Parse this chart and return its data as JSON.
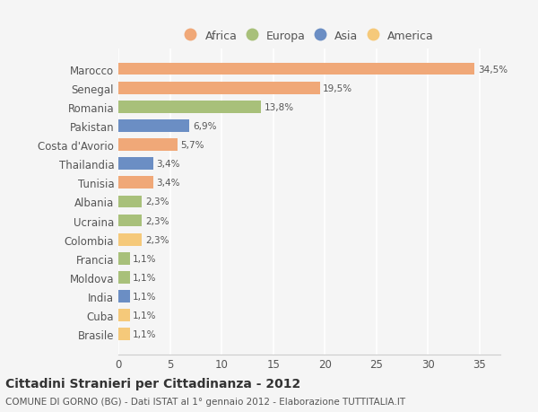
{
  "countries": [
    "Brasile",
    "Cuba",
    "India",
    "Moldova",
    "Francia",
    "Colombia",
    "Ucraina",
    "Albania",
    "Tunisia",
    "Thailandia",
    "Costa d'Avorio",
    "Pakistan",
    "Romania",
    "Senegal",
    "Marocco"
  ],
  "values": [
    1.1,
    1.1,
    1.1,
    1.1,
    1.1,
    2.3,
    2.3,
    2.3,
    3.4,
    3.4,
    5.7,
    6.9,
    13.8,
    19.5,
    34.5
  ],
  "labels": [
    "1,1%",
    "1,1%",
    "1,1%",
    "1,1%",
    "1,1%",
    "2,3%",
    "2,3%",
    "2,3%",
    "3,4%",
    "3,4%",
    "5,7%",
    "6,9%",
    "13,8%",
    "19,5%",
    "34,5%"
  ],
  "colors": [
    "#F5C97A",
    "#F5C97A",
    "#6B8EC4",
    "#A8C07A",
    "#A8C07A",
    "#F5C97A",
    "#A8C07A",
    "#A8C07A",
    "#F0A878",
    "#6B8EC4",
    "#F0A878",
    "#6B8EC4",
    "#A8C07A",
    "#F0A878",
    "#F0A878"
  ],
  "continent_colors": {
    "Africa": "#F0A878",
    "Europa": "#A8C07A",
    "Asia": "#6B8EC4",
    "America": "#F5C97A"
  },
  "legend_labels": [
    "Africa",
    "Europa",
    "Asia",
    "America"
  ],
  "title": "Cittadini Stranieri per Cittadinanza - 2012",
  "subtitle": "COMUNE DI GORNO (BG) - Dati ISTAT al 1° gennaio 2012 - Elaborazione TUTTITALIA.IT",
  "xlim": [
    0,
    37
  ],
  "xticks": [
    0,
    5,
    10,
    15,
    20,
    25,
    30,
    35
  ],
  "background_color": "#f5f5f5",
  "bar_height": 0.65
}
